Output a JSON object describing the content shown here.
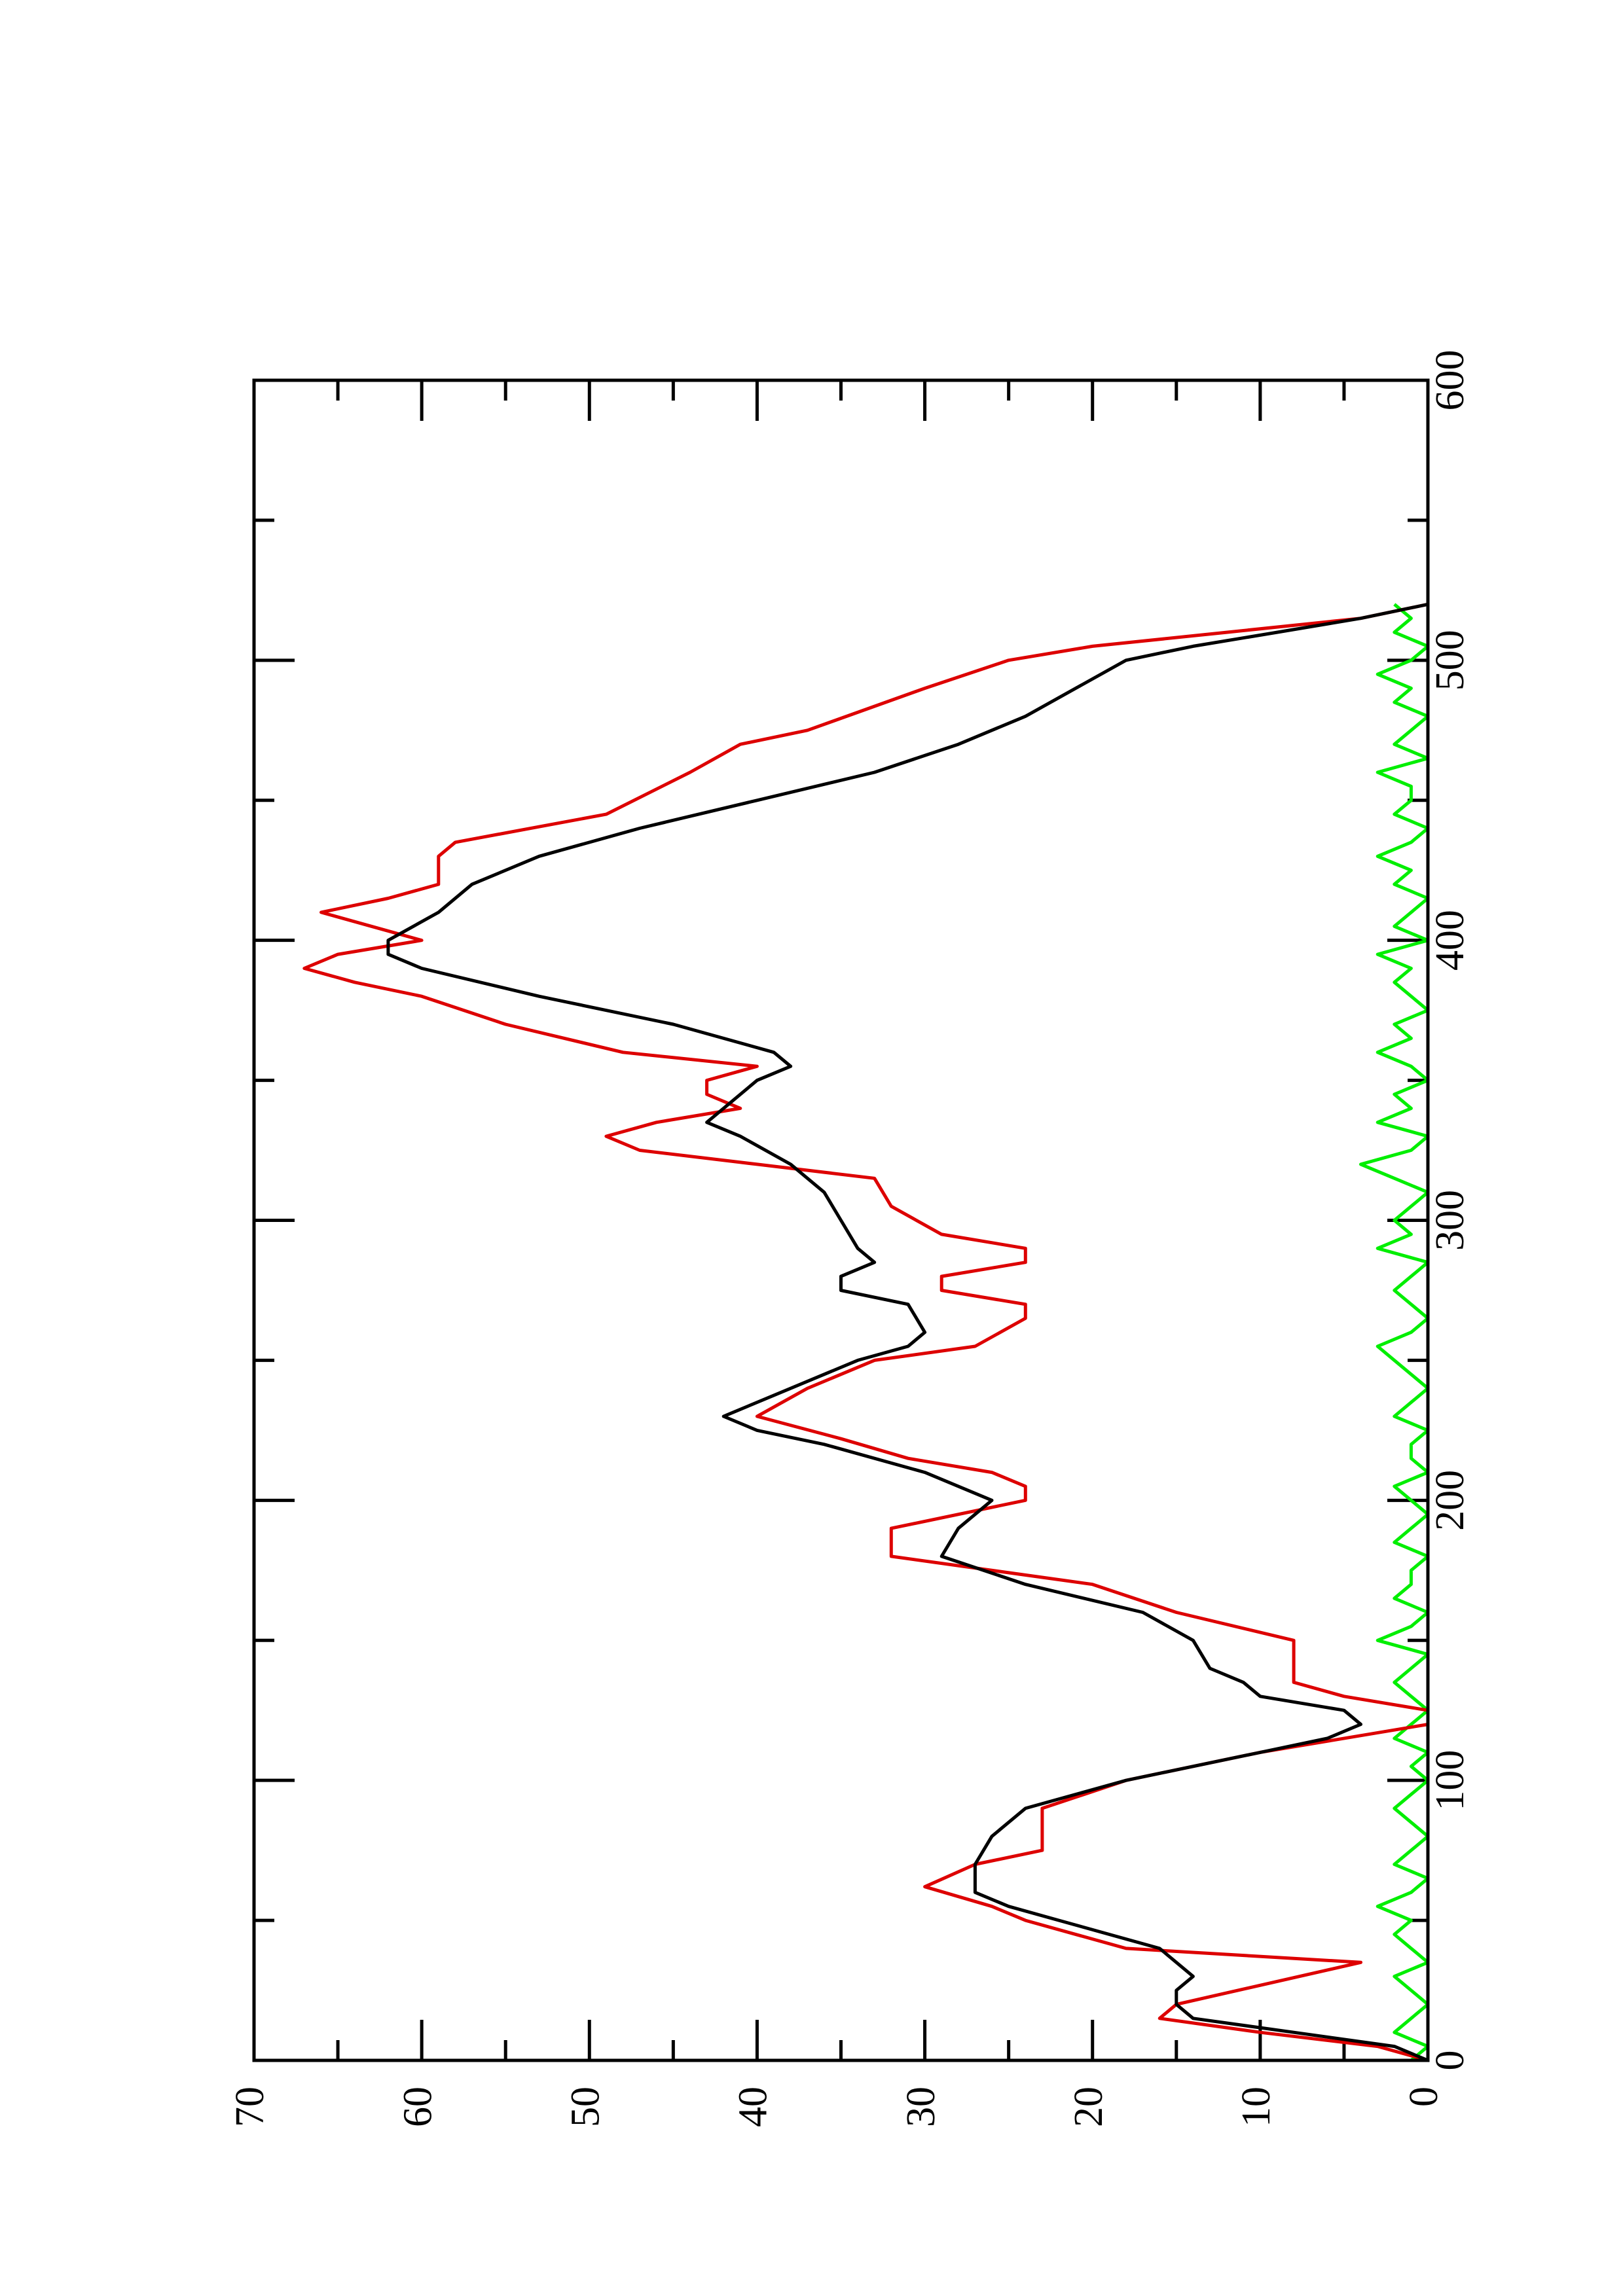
{
  "chart_data": {
    "type": "line",
    "xlim": [
      0,
      600
    ],
    "xticks": [
      0,
      100,
      200,
      300,
      400,
      500,
      600
    ],
    "xminorticks": [
      50,
      150,
      250,
      350,
      450,
      550
    ],
    "ylim": [
      0,
      70
    ],
    "yticks": [
      0,
      10,
      20,
      30,
      40,
      50,
      60,
      70
    ],
    "yminorticks": [
      5,
      15,
      25,
      35,
      45,
      55,
      65
    ],
    "series": [
      {
        "color": "#000000",
        "x": [
          0,
          5,
          10,
          15,
          20,
          25,
          30,
          40,
          50,
          55,
          60,
          70,
          80,
          90,
          100,
          110,
          115,
          120,
          125,
          130,
          135,
          140,
          150,
          160,
          170,
          180,
          190,
          195,
          200,
          210,
          220,
          225,
          230,
          240,
          250,
          255,
          260,
          270,
          275,
          280,
          285,
          290,
          300,
          310,
          320,
          330,
          335,
          340,
          350,
          355,
          360,
          370,
          380,
          390,
          395,
          400,
          410,
          420,
          430,
          440,
          450,
          460,
          470,
          480,
          490,
          500,
          505,
          510,
          515,
          520
        ],
        "values": [
          0,
          2,
          8,
          14,
          15,
          15,
          14,
          16,
          22,
          25,
          27,
          27,
          26,
          24,
          18,
          10,
          6,
          4,
          5,
          10,
          11,
          13,
          14,
          17,
          24,
          29,
          28,
          27,
          26,
          30,
          36,
          40,
          42,
          38,
          34,
          31,
          30,
          31,
          35,
          35,
          33,
          34,
          35,
          36,
          38,
          41,
          43,
          42,
          40,
          38,
          39,
          45,
          53,
          60,
          62,
          62,
          59,
          57,
          53,
          47,
          40,
          33,
          28,
          24,
          21,
          18,
          14,
          9,
          4,
          0
        ]
      },
      {
        "color": "#dd0000",
        "x": [
          0,
          5,
          10,
          15,
          20,
          35,
          40,
          50,
          55,
          62,
          70,
          75,
          90,
          100,
          110,
          120,
          125,
          130,
          135,
          150,
          160,
          170,
          180,
          190,
          200,
          205,
          210,
          215,
          222,
          230,
          240,
          250,
          255,
          265,
          270,
          275,
          280,
          285,
          290,
          295,
          305,
          315,
          320,
          325,
          330,
          335,
          340,
          345,
          350,
          355,
          360,
          370,
          380,
          385,
          390,
          395,
          400,
          405,
          410,
          415,
          420,
          430,
          435,
          445,
          460,
          470,
          475,
          490,
          500,
          505,
          510,
          515,
          520
        ],
        "values": [
          0,
          3,
          10,
          16,
          15,
          4,
          18,
          24,
          26,
          30,
          27,
          23,
          23,
          18,
          10,
          0,
          0,
          5,
          8,
          8,
          15,
          20,
          32,
          32,
          24,
          24,
          26,
          31,
          35,
          40,
          37,
          33,
          27,
          24,
          24,
          29,
          29,
          24,
          24,
          29,
          32,
          33,
          40,
          47,
          49,
          46,
          41,
          43,
          43,
          40,
          48,
          55,
          60,
          64,
          67,
          65,
          60,
          63,
          66,
          62,
          59,
          59,
          58,
          49,
          44,
          41,
          37,
          30,
          25,
          20,
          12,
          4,
          0
        ]
      },
      {
        "color": "#00ee00",
        "x": [
          0,
          5,
          10,
          15,
          20,
          25,
          30,
          35,
          40,
          45,
          50,
          55,
          60,
          65,
          70,
          75,
          80,
          85,
          90,
          95,
          100,
          105,
          110,
          115,
          120,
          125,
          130,
          135,
          140,
          145,
          150,
          155,
          160,
          165,
          170,
          175,
          180,
          185,
          190,
          195,
          200,
          205,
          210,
          215,
          220,
          225,
          230,
          235,
          240,
          245,
          250,
          255,
          260,
          265,
          270,
          275,
          280,
          285,
          290,
          295,
          300,
          305,
          310,
          315,
          320,
          325,
          330,
          335,
          340,
          345,
          350,
          355,
          360,
          365,
          370,
          375,
          380,
          385,
          390,
          395,
          400,
          405,
          410,
          415,
          420,
          425,
          430,
          435,
          440,
          445,
          450,
          455,
          460,
          465,
          470,
          475,
          480,
          485,
          490,
          495,
          500,
          505,
          510,
          515,
          520
        ],
        "values": [
          1,
          0,
          2,
          1,
          0,
          1,
          2,
          0,
          1,
          2,
          1,
          3,
          1,
          0,
          2,
          1,
          0,
          1,
          2,
          1,
          0,
          1,
          0,
          2,
          1,
          0,
          1,
          2,
          1,
          0,
          3,
          1,
          0,
          2,
          1,
          1,
          0,
          2,
          1,
          0,
          1,
          2,
          0,
          1,
          1,
          0,
          2,
          1,
          0,
          1,
          2,
          3,
          1,
          0,
          1,
          2,
          1,
          0,
          3,
          1,
          2,
          1,
          0,
          2,
          4,
          1,
          0,
          3,
          1,
          2,
          0,
          1,
          3,
          1,
          2,
          0,
          1,
          2,
          1,
          3,
          0,
          2,
          1,
          0,
          2,
          1,
          3,
          1,
          0,
          2,
          1,
          1,
          3,
          0,
          2,
          1,
          0,
          2,
          1,
          3,
          1,
          0,
          2,
          1,
          2
        ]
      }
    ]
  }
}
